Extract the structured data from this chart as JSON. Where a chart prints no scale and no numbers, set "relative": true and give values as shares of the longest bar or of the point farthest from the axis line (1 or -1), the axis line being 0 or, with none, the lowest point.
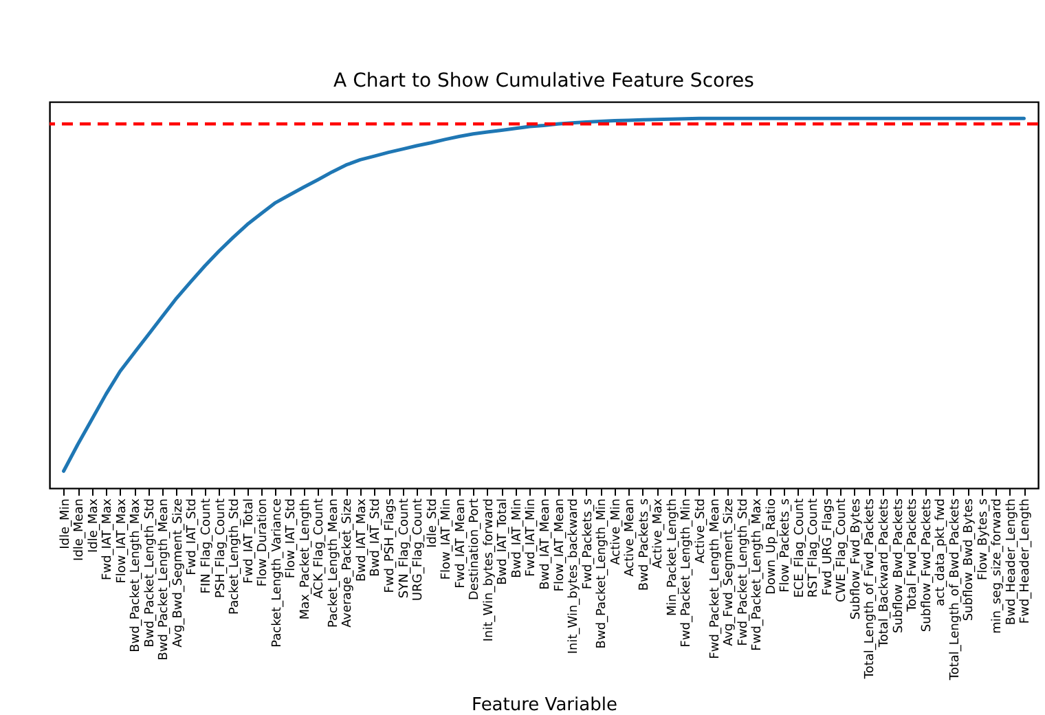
{
  "chart_data": {
    "type": "line",
    "title": "A Chart to Show Cumulative Feature Scores",
    "xlabel": "Feature Variable",
    "relative": true,
    "categories": [
      "Idle_Min",
      "Idle_Mean",
      "Idle_Max",
      "Fwd_IAT_Max",
      "Flow_IAT_Max",
      "Bwd_Packet_Length_Max",
      "Bwd_Packet_Length_Std",
      "Bwd_Packet_Length_Mean",
      "Avg_Bwd_Segment_Size",
      "Fwd_IAT_Std",
      "FIN_Flag_Count",
      "PSH_Flag_Count",
      "Packet_Length_Std",
      "Fwd_IAT_Total",
      "Flow_Duration",
      "Packet_Length_Variance",
      "Flow_IAT_Std",
      "Max_Packet_Length",
      "ACK_Flag_Count",
      "Packet_Length_Mean",
      "Average_Packet_Size",
      "Bwd_IAT_Max",
      "Bwd_IAT_Std",
      "Fwd_PSH_Flags",
      "SYN_Flag_Count",
      "URG_Flag_Count",
      "Idle_Std",
      "Flow_IAT_Min",
      "Fwd_IAT_Mean",
      "Destination_Port",
      "Init_Win_bytes_forward",
      "Bwd_IAT_Total",
      "Bwd_IAT_Min",
      "Fwd_IAT_Min",
      "Bwd_IAT_Mean",
      "Flow_IAT_Mean",
      "Init_Win_bytes_backward",
      "Fwd_Packets_s",
      "Bwd_Packet_Length_Min",
      "Active_Min",
      "Active_Mean",
      "Bwd_Packets_s",
      "Active_Max",
      "Min_Packet_Length",
      "Fwd_Packet_Length_Min",
      "Active_Std",
      "Fwd_Packet_Length_Mean",
      "Avg_Fwd_Segment_Size",
      "Fwd_Packet_Length_Std",
      "Fwd_Packet_Length_Max",
      "Down_Up_Ratio",
      "Flow_Packets_s",
      "ECE_Flag_Count",
      "RST_Flag_Count",
      "Fwd_URG_Flags",
      "CWE_Flag_Count",
      "Subflow_Fwd_Bytes",
      "Total_Length_of_Fwd_Packets",
      "Total_Backward_Packets",
      "Subflow_Bwd_Packets",
      "Total_Fwd_Packets",
      "Subflow_Fwd_Packets",
      "act_data_pkt_fwd",
      "Total_Length_of_Bwd_Packets",
      "Subflow_Bwd_Bytes",
      "Flow_Bytes_s",
      "min_seg_size_forward",
      "Bwd_Header_Length",
      "Fwd_Header_Length"
    ],
    "series": [
      {
        "color": "#1f77b4",
        "values": [
          0.046,
          0.118,
          0.186,
          0.254,
          0.316,
          0.366,
          0.415,
          0.465,
          0.514,
          0.558,
          0.601,
          0.641,
          0.678,
          0.713,
          0.743,
          0.772,
          0.793,
          0.814,
          0.834,
          0.855,
          0.874,
          0.888,
          0.898,
          0.908,
          0.917,
          0.926,
          0.934,
          0.943,
          0.951,
          0.958,
          0.963,
          0.968,
          0.973,
          0.978,
          0.981,
          0.985,
          0.988,
          0.99,
          0.992,
          0.994,
          0.995,
          0.996,
          0.997,
          0.998,
          0.999,
          1,
          1,
          1,
          1,
          1,
          1,
          1,
          1,
          1,
          1,
          1,
          1,
          1,
          1,
          1,
          1,
          1,
          1,
          1,
          1,
          1,
          1,
          1,
          1
        ]
      }
    ],
    "ref_lines": [
      {
        "axis": "y",
        "value": 0.985,
        "color": "#ff0000",
        "line_style": "dashed"
      }
    ],
    "grid": false,
    "marker": "none",
    "line_style": "solid"
  }
}
